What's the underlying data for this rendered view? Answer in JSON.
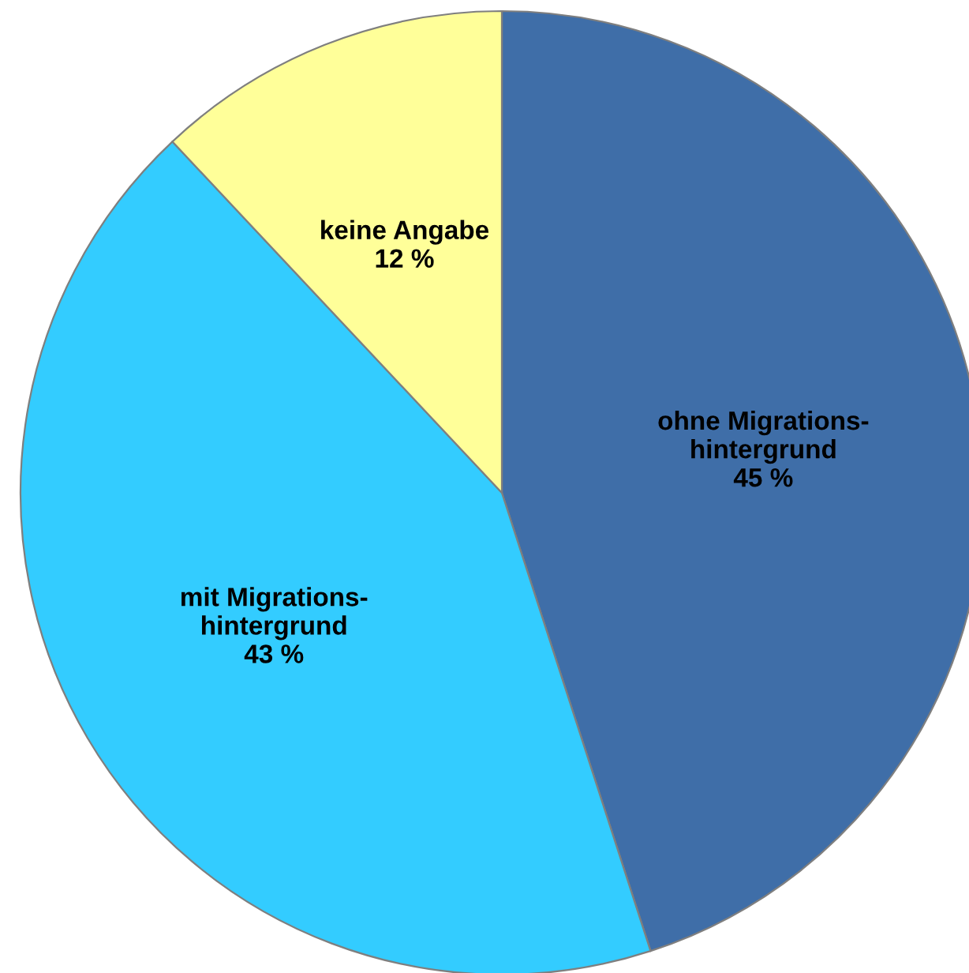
{
  "chart_data": {
    "type": "pie",
    "categories": [
      "ohne Migrations-\nhintergrund",
      "mit Migrations-\nhintergrund",
      "keine Angabe"
    ],
    "values": [
      45,
      43,
      12
    ],
    "value_labels": [
      "45 %",
      "43 %",
      "12 %"
    ],
    "colors": [
      "#3f6ea8",
      "#33ccff",
      "#ffff99"
    ]
  }
}
